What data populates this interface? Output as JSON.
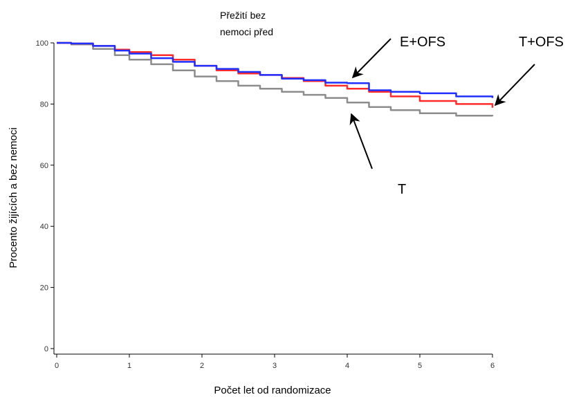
{
  "chart_data": {
    "type": "line",
    "title_lines": [
      "Přežití bez",
      "nemoci před"
    ],
    "xlabel": "Počet let od randomizace",
    "ylabel": "Procento žijících a bez nemoci",
    "xlim": [
      0,
      6
    ],
    "ylim": [
      0,
      100
    ],
    "xticks": [
      0,
      1,
      2,
      3,
      4,
      5,
      6
    ],
    "yticks": [
      0,
      20,
      40,
      60,
      80,
      100
    ],
    "grid": false,
    "series": [
      {
        "key": "gray",
        "color": "#8c8c8c",
        "points": [
          [
            0,
            100
          ],
          [
            0.2,
            99.5
          ],
          [
            0.5,
            98
          ],
          [
            0.8,
            96
          ],
          [
            1.0,
            94.5
          ],
          [
            1.3,
            93
          ],
          [
            1.6,
            91
          ],
          [
            1.9,
            89
          ],
          [
            2.2,
            87.5
          ],
          [
            2.5,
            86
          ],
          [
            2.8,
            85
          ],
          [
            3.1,
            84
          ],
          [
            3.4,
            83
          ],
          [
            3.7,
            82
          ],
          [
            4.0,
            80.5
          ],
          [
            4.3,
            79
          ],
          [
            4.6,
            78
          ],
          [
            5.0,
            77
          ],
          [
            5.5,
            76.2
          ],
          [
            6.0,
            76
          ]
        ]
      },
      {
        "key": "red",
        "color": "#ff2a2a",
        "points": [
          [
            0,
            100
          ],
          [
            0.2,
            99.8
          ],
          [
            0.5,
            99
          ],
          [
            0.8,
            97.8
          ],
          [
            1.0,
            97
          ],
          [
            1.3,
            96
          ],
          [
            1.6,
            94.5
          ],
          [
            1.9,
            92.5
          ],
          [
            2.2,
            91
          ],
          [
            2.5,
            90
          ],
          [
            2.8,
            89.5
          ],
          [
            3.1,
            88.5
          ],
          [
            3.4,
            87.5
          ],
          [
            3.7,
            86
          ],
          [
            4.0,
            85
          ],
          [
            4.3,
            84
          ],
          [
            4.6,
            82.5
          ],
          [
            5.0,
            81
          ],
          [
            5.5,
            80
          ],
          [
            6.0,
            78.8
          ]
        ]
      },
      {
        "key": "blue",
        "color": "#1f2fff",
        "points": [
          [
            0,
            100
          ],
          [
            0.2,
            99.8
          ],
          [
            0.5,
            99
          ],
          [
            0.8,
            97.5
          ],
          [
            1.0,
            96.5
          ],
          [
            1.3,
            95
          ],
          [
            1.6,
            93.8
          ],
          [
            1.9,
            92.5
          ],
          [
            2.2,
            91.5
          ],
          [
            2.5,
            90.5
          ],
          [
            2.8,
            89.5
          ],
          [
            3.1,
            88.3
          ],
          [
            3.4,
            87.8
          ],
          [
            3.7,
            87
          ],
          [
            4.0,
            86.8
          ],
          [
            4.3,
            84.5
          ],
          [
            4.6,
            84
          ],
          [
            5.0,
            83.5
          ],
          [
            5.5,
            82.5
          ],
          [
            6.0,
            82
          ]
        ]
      }
    ],
    "annotations": [
      {
        "key": "e-ofs",
        "text": "E+OFS"
      },
      {
        "key": "t-ofs",
        "text": "T+OFS"
      },
      {
        "key": "t",
        "text": "T"
      }
    ]
  }
}
